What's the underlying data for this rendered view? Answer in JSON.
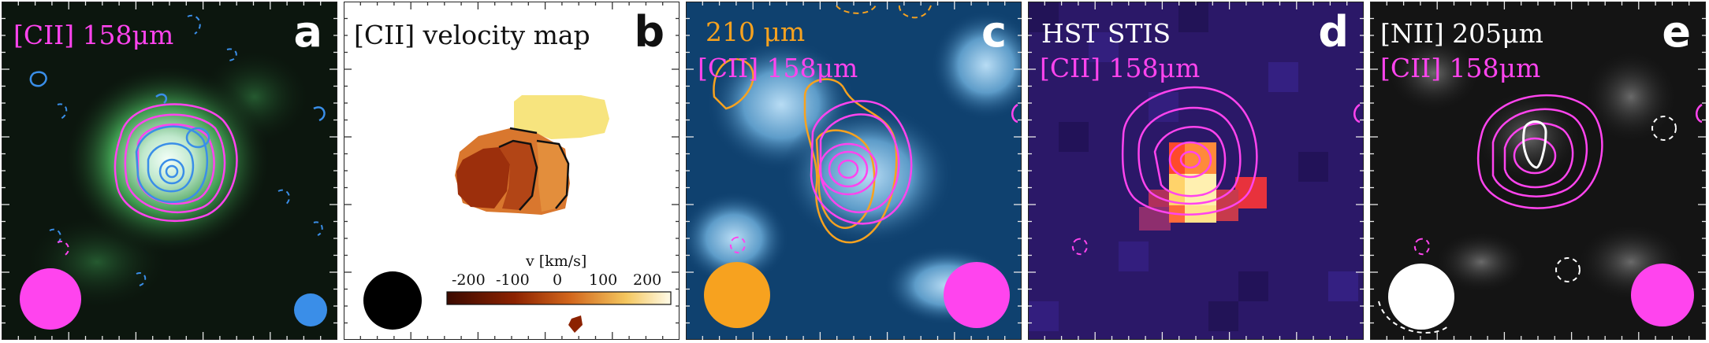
{
  "figure": {
    "panels": [
      {
        "letter": "a",
        "label_lines": [
          "[CII] 158μm"
        ],
        "colors": {
          "bg": "#0d1a10",
          "glow": "#3fa850",
          "core": "#dff5ea",
          "magenta": "#ff44ee",
          "blue": "#3a8ee8"
        },
        "beams": [
          "magenta-beam",
          "blue-beam"
        ]
      },
      {
        "letter": "b",
        "label_lines": [
          "[CII] velocity map"
        ],
        "colorbar": {
          "label": "v [km/s]",
          "ticks": [
            "-200",
            "-100",
            "0",
            "100",
            "200"
          ]
        },
        "colors": {
          "bg": "#ffffff",
          "dark": "#7a1a00",
          "mid": "#c45a1a",
          "light": "#f6e27a"
        },
        "beams": [
          "black-beam"
        ]
      },
      {
        "letter": "c",
        "label_lines": [
          "210 μm",
          "[CII] 158μm"
        ],
        "colors": {
          "bg": "#0e3f6e",
          "light": "#8fc0e6",
          "orange": "#f7a21f",
          "magenta": "#ff44ee"
        },
        "beams": [
          "orange-beam",
          "magenta-beam"
        ]
      },
      {
        "letter": "d",
        "label_lines": [
          "HST STIS",
          "[CII] 158μm"
        ],
        "colors": {
          "bg": "#2a1668",
          "hot": "#ff3b3b",
          "core": "#ffee99",
          "magenta": "#ff44ee"
        },
        "beams": []
      },
      {
        "letter": "e",
        "label_lines": [
          "[NII] 205μm",
          "[CII] 158μm"
        ],
        "colors": {
          "bg": "#121212",
          "white": "#ffffff",
          "magenta": "#ff44ee"
        },
        "beams": [
          "white-beam",
          "magenta-beam"
        ]
      }
    ]
  }
}
